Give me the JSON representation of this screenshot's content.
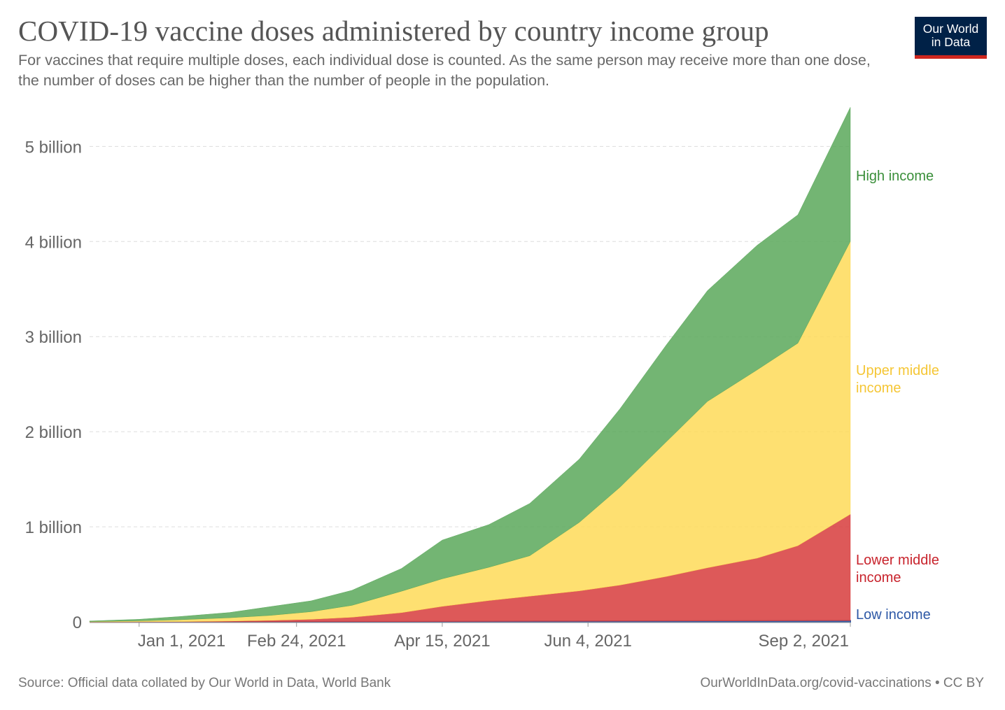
{
  "title": "COVID-19 vaccine doses administered by country income group",
  "subtitle": "For vaccines that require multiple doses, each individual dose is counted. As the same person may receive more than one dose, the number of doses can be higher than the number of people in the population.",
  "logo": {
    "line1": "Our World",
    "line2": "in Data",
    "bg_color": "#002147",
    "accent_color": "#ce261e"
  },
  "source": "Source: Official data collated by Our World in Data, World Bank",
  "license": "OurWorldInData.org/covid-vaccinations • CC BY",
  "chart_data": {
    "type": "area",
    "stacked": true,
    "grid": "horizontal dashed",
    "x_axis": {
      "type": "date",
      "range": [
        "2020-12-15",
        "2021-09-02"
      ],
      "ticks": [
        {
          "date": "2021-01-01",
          "label": "Jan 1, 2021"
        },
        {
          "date": "2021-02-24",
          "label": "Feb 24, 2021"
        },
        {
          "date": "2021-04-15",
          "label": "Apr 15, 2021"
        },
        {
          "date": "2021-06-04",
          "label": "Jun 4, 2021"
        },
        {
          "date": "2021-09-02",
          "label": "Sep 2, 2021"
        }
      ]
    },
    "y_axis": {
      "range": [
        0,
        5400000000
      ],
      "ticks": [
        {
          "value": 0,
          "label": "0"
        },
        {
          "value": 1000000000,
          "label": "1 billion"
        },
        {
          "value": 2000000000,
          "label": "2 billion"
        },
        {
          "value": 3000000000,
          "label": "3 billion"
        },
        {
          "value": 4000000000,
          "label": "4 billion"
        },
        {
          "value": 5000000000,
          "label": "5 billion"
        }
      ]
    },
    "x": [
      "2020-12-15",
      "2021-01-01",
      "2021-01-15",
      "2021-02-01",
      "2021-02-15",
      "2021-03-01",
      "2021-03-15",
      "2021-04-01",
      "2021-04-15",
      "2021-05-01",
      "2021-05-15",
      "2021-06-01",
      "2021-06-15",
      "2021-07-01",
      "2021-07-15",
      "2021-08-01",
      "2021-08-15",
      "2021-09-02"
    ],
    "series": [
      {
        "name": "Low income",
        "color": "#3360a9",
        "values": [
          0,
          0,
          0,
          0,
          0,
          1000000,
          1500000,
          2000000,
          3000000,
          4000000,
          5000000,
          6000000,
          7000000,
          8000000,
          9000000,
          10000000,
          11000000,
          12000000
        ]
      },
      {
        "name": "Lower middle income",
        "color": "#d73c3c",
        "values": [
          0,
          1000000,
          2000000,
          8000000,
          16000000,
          26000000,
          47000000,
          95000000,
          160000000,
          220000000,
          265000000,
          320000000,
          380000000,
          470000000,
          560000000,
          660000000,
          790000000,
          1120000000
        ]
      },
      {
        "name": "Upper middle income",
        "color": "#fedb58",
        "values": [
          3000000,
          10000000,
          20000000,
          35000000,
          52000000,
          80000000,
          125000000,
          225000000,
          290000000,
          350000000,
          425000000,
          720000000,
          1030000000,
          1420000000,
          1750000000,
          1980000000,
          2130000000,
          2870000000
        ]
      },
      {
        "name": "High income",
        "color": "#5ba85b",
        "values": [
          6000000,
          16000000,
          34000000,
          55000000,
          92000000,
          114000000,
          158000000,
          239000000,
          407000000,
          449000000,
          550000000,
          665000000,
          825000000,
          1020000000,
          1165000000,
          1310000000,
          1350000000,
          1410000000
        ]
      }
    ],
    "labels": [
      {
        "series": "High income",
        "lines": [
          "High income"
        ],
        "color": "#3a8f3a"
      },
      {
        "series": "Upper middle income",
        "lines": [
          "Upper middle",
          "income"
        ],
        "color": "#f5c635"
      },
      {
        "series": "Lower middle income",
        "lines": [
          "Lower middle",
          "income"
        ],
        "color": "#c8232c"
      },
      {
        "series": "Low income",
        "lines": [
          "Low income"
        ],
        "color": "#2d58a6"
      }
    ]
  }
}
